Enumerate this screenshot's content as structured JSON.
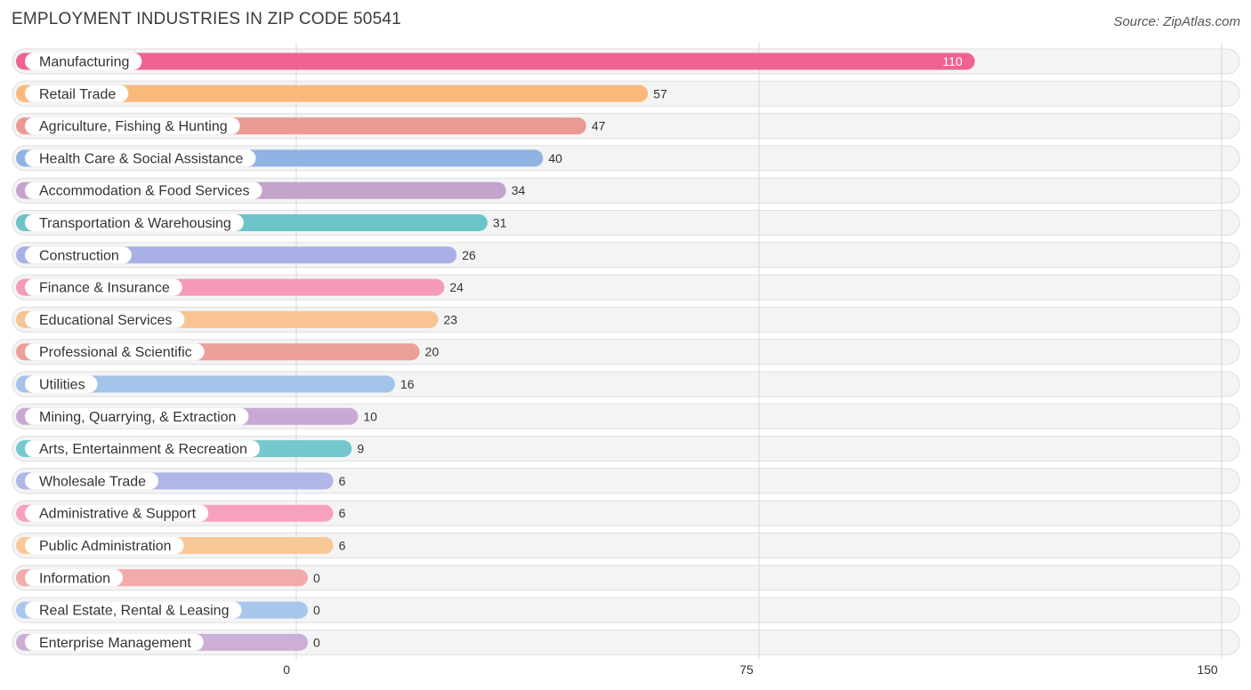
{
  "chart_data": {
    "type": "bar",
    "orientation": "horizontal",
    "title": "EMPLOYMENT INDUSTRIES IN ZIP CODE 50541",
    "source": "Source: ZipAtlas.com",
    "xlim": [
      0,
      150
    ],
    "xticks": [
      0,
      75,
      150
    ],
    "categories": [
      "Manufacturing",
      "Retail Trade",
      "Agriculture, Fishing & Hunting",
      "Health Care & Social Assistance",
      "Accommodation & Food Services",
      "Transportation & Warehousing",
      "Construction",
      "Finance & Insurance",
      "Educational Services",
      "Professional & Scientific",
      "Utilities",
      "Mining, Quarrying, & Extraction",
      "Arts, Entertainment & Recreation",
      "Wholesale Trade",
      "Administrative & Support",
      "Public Administration",
      "Information",
      "Real Estate, Rental & Leasing",
      "Enterprise Management"
    ],
    "values": [
      110,
      57,
      47,
      40,
      34,
      31,
      26,
      24,
      23,
      20,
      16,
      10,
      9,
      6,
      6,
      6,
      0,
      0,
      0
    ],
    "colors": [
      "#f06292",
      "#f9b97b",
      "#ea9a92",
      "#8fb4e3",
      "#c3a3cc",
      "#6cc4c9",
      "#a9b0e6",
      "#f59ab7",
      "#f8c493",
      "#ec9f99",
      "#a3c3ea",
      "#c9a9d3",
      "#75c8cd",
      "#b0b6e8",
      "#f7a1bf",
      "#f9c898",
      "#f2aaaa",
      "#a9c7ec",
      "#cbafd6"
    ],
    "grid": true
  }
}
